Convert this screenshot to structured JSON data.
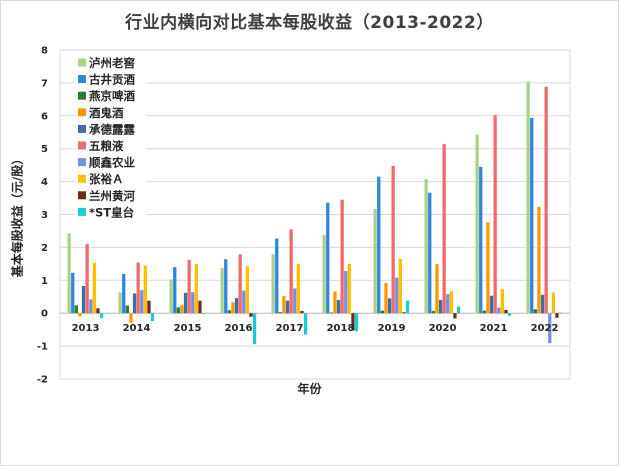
{
  "chart_data": {
    "type": "bar",
    "title": "行业内横向对比基本每股收益（2013-2022）",
    "xlabel": "年份",
    "ylabel": "基本每股收益（元/股）",
    "ylim": [
      -2,
      8
    ],
    "yticks": [
      "-2",
      "-1",
      "0",
      "1",
      "2",
      "3",
      "4",
      "5",
      "6",
      "7",
      "8"
    ],
    "grid": true,
    "legend_position": "top-left",
    "categories": [
      "2013",
      "2014",
      "2015",
      "2016",
      "2017",
      "2018",
      "2019",
      "2020",
      "2021",
      "2022"
    ],
    "series": [
      {
        "name": "泸州老窖",
        "color": "#a9d18e",
        "values": [
          2.43,
          0.63,
          1.03,
          1.38,
          1.79,
          2.38,
          3.17,
          4.08,
          5.42,
          7.05
        ]
      },
      {
        "name": "古井贡酒",
        "color": "#2e86de",
        "values": [
          1.23,
          1.19,
          1.4,
          1.64,
          2.27,
          3.36,
          4.15,
          3.66,
          4.45,
          5.94
        ]
      },
      {
        "name": "燕京啤酒",
        "color": "#2e7d32",
        "values": [
          0.24,
          0.23,
          0.18,
          0.09,
          0.03,
          0.02,
          0.08,
          0.07,
          0.08,
          0.12
        ]
      },
      {
        "name": "酒鬼酒",
        "color": "#ff9800",
        "values": [
          -0.1,
          -0.29,
          0.24,
          0.33,
          0.52,
          0.66,
          0.92,
          1.49,
          2.76,
          3.23
        ]
      },
      {
        "name": "承德露露",
        "color": "#3a6ea5",
        "values": [
          0.83,
          0.6,
          0.62,
          0.46,
          0.38,
          0.4,
          0.45,
          0.4,
          0.53,
          0.56
        ]
      },
      {
        "name": "五粮液",
        "color": "#ef6b6b",
        "values": [
          2.1,
          1.54,
          1.62,
          1.79,
          2.55,
          3.45,
          4.48,
          5.14,
          6.02,
          6.88
        ]
      },
      {
        "name": "顺鑫农业",
        "color": "#7b8fe0",
        "values": [
          0.42,
          0.7,
          0.64,
          0.69,
          0.75,
          1.28,
          1.08,
          0.58,
          0.17,
          -0.91
        ]
      },
      {
        "name": "张裕Ａ",
        "color": "#ffc000",
        "values": [
          1.53,
          1.45,
          1.5,
          1.43,
          1.5,
          1.5,
          1.65,
          0.67,
          0.73,
          0.63
        ]
      },
      {
        "name": "兰州黄河",
        "color": "#6d2d1c",
        "values": [
          0.15,
          0.38,
          0.38,
          -0.11,
          0.07,
          -0.52,
          0.03,
          -0.16,
          0.1,
          -0.14
        ]
      },
      {
        "name": "*ST皇台",
        "color": "#1ecbd4",
        "values": [
          -0.15,
          -0.24,
          0.01,
          -0.94,
          -0.65,
          -0.55,
          0.38,
          0.2,
          -0.08,
          0.02
        ]
      }
    ]
  }
}
